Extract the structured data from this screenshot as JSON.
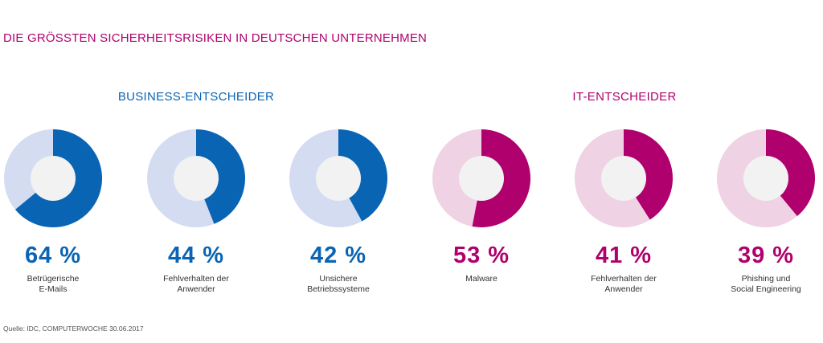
{
  "page": {
    "title": "DIE GRÖSSTEN SICHERHEITSRISIKEN IN DEUTSCHEN UNTERNEHMEN"
  },
  "colors": {
    "title": "#b0006e",
    "blue": "#0a64b4",
    "blue_light": "#d3dcf1",
    "magenta": "#b0006e",
    "magenta_light": "#efd2e3",
    "center": "#f2f2f2"
  },
  "chart_data": [
    {
      "type": "pie",
      "title": "BUSINESS-ENTSCHEIDER",
      "color": "#0a64b4",
      "color_light": "#d3dcf1",
      "items": [
        {
          "percent": "64 %",
          "value": 64,
          "label": "Betrügerische\nE-Mails"
        },
        {
          "percent": "44 %",
          "value": 44,
          "label": "Fehlverhalten der\nAnwender"
        },
        {
          "percent": "42 %",
          "value": 42,
          "label": "Unsichere\nBetriebssysteme"
        }
      ]
    },
    {
      "type": "pie",
      "title": "IT-ENTSCHEIDER",
      "color": "#b0006e",
      "color_light": "#efd2e3",
      "items": [
        {
          "percent": "53 %",
          "value": 53,
          "label": "Malware"
        },
        {
          "percent": "41 %",
          "value": 41,
          "label": "Fehlverhalten der\nAnwender"
        },
        {
          "percent": "39 %",
          "value": 39,
          "label": "Phishing und\nSocial Engineering"
        }
      ]
    }
  ],
  "source": "Quelle: IDC, COMPUTERWOCHE 30.06.2017"
}
